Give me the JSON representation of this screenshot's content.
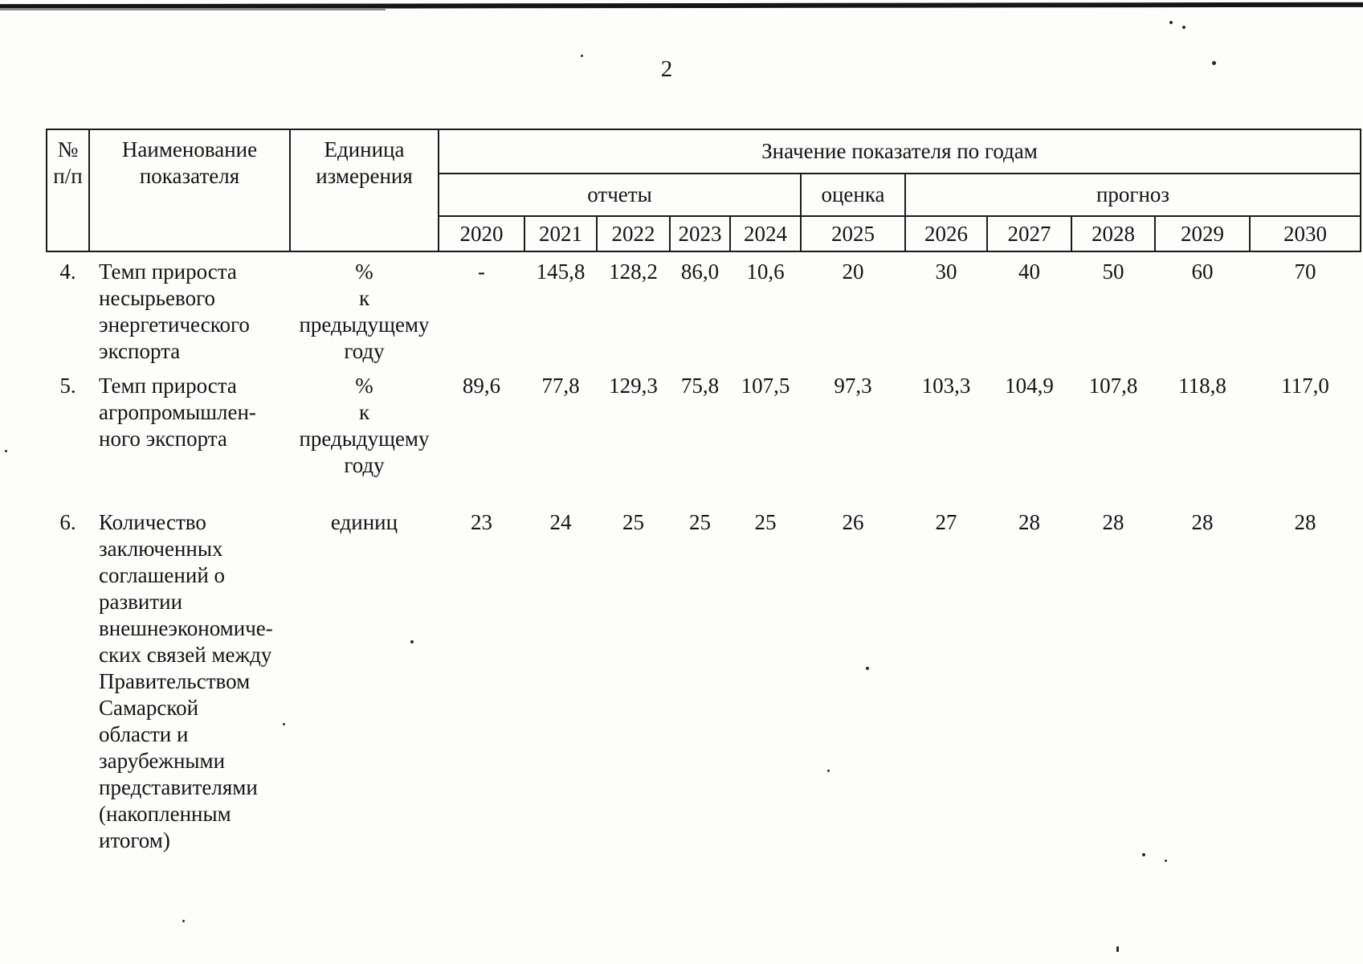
{
  "page": {
    "number": "2"
  },
  "table": {
    "header": {
      "num_lines": [
        "№",
        "п/п"
      ],
      "name_lines": [
        "Наименование",
        "показателя"
      ],
      "unit_lines": [
        "Единица",
        "измерения"
      ],
      "values_title": "Значение показателя по годам",
      "groups": [
        {
          "label": "отчеты",
          "span": 5
        },
        {
          "label": "оценка",
          "span": 1
        },
        {
          "label": "прогноз",
          "span": 5
        }
      ],
      "years": [
        "2020",
        "2021",
        "2022",
        "2023",
        "2024",
        "2025",
        "2026",
        "2027",
        "2028",
        "2029",
        "2030"
      ]
    },
    "rows": [
      {
        "num": "4.",
        "name_lines": [
          "Темп прироста",
          "несырьевого",
          "энергетического",
          "экспорта"
        ],
        "unit_lines": [
          "%",
          "к",
          "предыдущему",
          "году"
        ],
        "values": [
          "-",
          "145,8",
          "128,2",
          "86,0",
          "10,6",
          "20",
          "30",
          "40",
          "50",
          "60",
          "70"
        ]
      },
      {
        "num": "5.",
        "name_lines": [
          "Темп прироста",
          "агропромышлен-",
          "ного экспорта"
        ],
        "unit_lines": [
          "%",
          "к",
          "предыдущему",
          "году"
        ],
        "values": [
          "89,6",
          "77,8",
          "129,3",
          "75,8",
          "107,5",
          "97,3",
          "103,3",
          "104,9",
          "107,8",
          "118,8",
          "117,0"
        ]
      },
      {
        "num": "6.",
        "name_lines": [
          "Количество",
          "заключенных",
          "соглашений о",
          "развитии",
          "внешнеэкономиче-",
          "ских связей между",
          "Правительством",
          "Самарской",
          "области и",
          "зарубежными",
          "представителями",
          "(накопленным",
          "итогом)"
        ],
        "unit_lines": [
          "единиц"
        ],
        "values": [
          "23",
          "24",
          "25",
          "25",
          "25",
          "26",
          "27",
          "28",
          "28",
          "28",
          "28"
        ]
      }
    ]
  }
}
